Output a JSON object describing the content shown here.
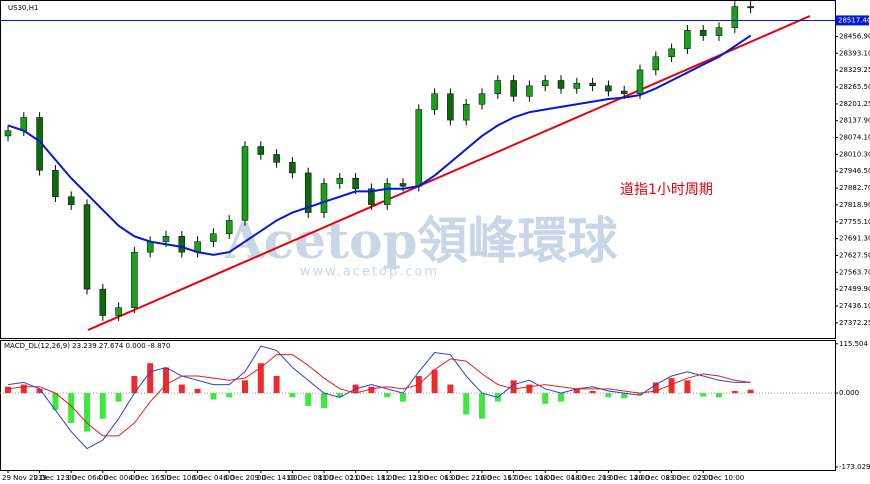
{
  "chart_data": [
    {
      "type": "candlestick",
      "title": "US30,H1",
      "annotation": "道指1小时周期",
      "annotation_color": "#e8000b",
      "categories": [
        "29 Nov 2019",
        null,
        "2 Dec 12:00",
        null,
        "3 Dec 06:00",
        null,
        "4 Dec 00:00",
        null,
        "4 Dec 16:00",
        null,
        "5 Dec 10:00",
        null,
        "6 Dec 04:00",
        null,
        "6 Dec 20:00",
        null,
        "9 Dec 14:00",
        null,
        "10 Dec 08:00",
        null,
        "11 Dec 02:00",
        null,
        "11 Dec 18:00",
        null,
        "12 Dec 12:00",
        null,
        "13 Dec 06:00",
        null,
        "13 Dec 22:00",
        null,
        "16 Dec 16:00",
        null,
        "17 Dec 10:00",
        null,
        "18 Dec 04:00",
        null,
        "18 Dec 20:00",
        null,
        "19 Dec 14:00",
        null,
        "20 Dec 08:00",
        null,
        "23 Dec 02:00",
        null,
        "23 Dec 10:00",
        null,
        null,
        null
      ],
      "open": [
        28080,
        28100,
        28150,
        27950,
        27850,
        27820,
        27500,
        27400,
        27430,
        27640,
        27680,
        27700,
        27640,
        27680,
        27710,
        27760,
        28040,
        28010,
        27980,
        27940,
        27790,
        27900,
        27920,
        27880,
        27820,
        27900,
        27890,
        28180,
        28240,
        28140,
        28200,
        28240,
        28290,
        28230,
        28270,
        28290,
        28260,
        28280,
        28270,
        28250,
        28240,
        28330,
        28380,
        28410,
        28480,
        28460,
        28490,
        28570
      ],
      "high": [
        28120,
        28170,
        28170,
        27970,
        27870,
        27840,
        27520,
        27450,
        27660,
        27700,
        27720,
        27720,
        27700,
        27730,
        27780,
        28060,
        28060,
        28030,
        28000,
        27960,
        27920,
        27940,
        27940,
        27900,
        27920,
        27920,
        28200,
        28260,
        28260,
        28220,
        28260,
        28310,
        28310,
        28290,
        28310,
        28310,
        28300,
        28300,
        28290,
        28270,
        28350,
        28400,
        28430,
        28500,
        28500,
        28510,
        28590,
        28590
      ],
      "low": [
        28060,
        28080,
        27930,
        27830,
        27800,
        27480,
        27380,
        27380,
        27410,
        27620,
        27660,
        27620,
        27620,
        27660,
        27690,
        27740,
        27990,
        27960,
        27920,
        27770,
        27770,
        27880,
        27860,
        27800,
        27800,
        27870,
        27870,
        28160,
        28120,
        28120,
        28180,
        28220,
        28210,
        28210,
        28250,
        28240,
        28240,
        28250,
        28230,
        28220,
        28220,
        28310,
        28360,
        28390,
        28440,
        28440,
        28470,
        28545
      ],
      "close": [
        28100,
        28150,
        27950,
        27850,
        27820,
        27500,
        27400,
        27430,
        27640,
        27680,
        27700,
        27640,
        27680,
        27710,
        27760,
        28040,
        28010,
        27980,
        27940,
        27790,
        27900,
        27920,
        27880,
        27820,
        27900,
        27890,
        28180,
        28240,
        28140,
        28200,
        28240,
        28290,
        28230,
        28270,
        28290,
        28260,
        28280,
        28270,
        28250,
        28240,
        28330,
        28380,
        28410,
        28480,
        28460,
        28490,
        28570,
        28565
      ],
      "up_color": "#19a019",
      "down_color": "#0b6b0b",
      "overlays": [
        {
          "color": "#0018d8",
          "values": [
            28120,
            28100,
            28060,
            27990,
            27920,
            27860,
            27800,
            27740,
            27700,
            27680,
            27670,
            27660,
            27640,
            27630,
            27640,
            27680,
            27720,
            27760,
            27790,
            27810,
            27830,
            27850,
            27870,
            27870,
            27880,
            27880,
            27890,
            27930,
            27980,
            28030,
            28080,
            28120,
            28150,
            28170,
            28180,
            28190,
            28200,
            28210,
            28220,
            28225,
            28235,
            28260,
            28290,
            28320,
            28350,
            28380,
            28420,
            28460
          ]
        }
      ],
      "level_line": {
        "value": 28517.4,
        "label": "28517.40",
        "color": "#0018d8"
      },
      "ylim": [
        27315,
        28591
      ],
      "yticks": [
        {
          "value": 28456.9,
          "label": "28456.90"
        },
        {
          "value": 28393.1,
          "label": "28393.10"
        },
        28329.25,
        {
          "value": 28265.5,
          "label": "28265.50"
        },
        28201.25,
        {
          "value": 28137.9,
          "label": "28137.90"
        },
        {
          "value": 28074.1,
          "label": "28074.10"
        },
        {
          "value": 28010.3,
          "label": "28010.30"
        },
        {
          "value": 27946.5,
          "label": "27946.50"
        },
        {
          "value": 27882.7,
          "label": "27882.70"
        },
        {
          "value": 27818.9,
          "label": "27818.90"
        },
        {
          "value": 27755.1,
          "label": "27755.10"
        },
        {
          "value": 27691.3,
          "label": "27691.30"
        },
        {
          "value": 27627.5,
          "label": "27627.50"
        },
        {
          "value": 27563.7,
          "label": "27563.70"
        },
        {
          "value": 27499.9,
          "label": "27499.90"
        },
        {
          "value": 27436.1,
          "label": "27436.10"
        },
        27372.25
      ]
    },
    {
      "type": "macd",
      "title": "MACD_DL(12,26,9) 23.239 27.674 0.000 -8.870",
      "values": [
        15,
        20,
        10,
        -40,
        -70,
        -90,
        -60,
        -20,
        40,
        70,
        60,
        20,
        10,
        -15,
        -10,
        30,
        70,
        40,
        -10,
        -30,
        -35,
        -10,
        20,
        15,
        -10,
        -20,
        40,
        55,
        20,
        -50,
        -60,
        -20,
        30,
        20,
        -25,
        -20,
        10,
        5,
        -10,
        -12,
        -5,
        25,
        35,
        30,
        -8,
        -10,
        5,
        8
      ],
      "positive_color": "#ee2a2a",
      "negative_color": "#3ee83e",
      "lines": [
        {
          "color": "#3040d0",
          "values": [
            20,
            25,
            10,
            -40,
            -90,
            -130,
            -110,
            -60,
            0,
            50,
            60,
            40,
            30,
            20,
            20,
            50,
            110,
            100,
            60,
            30,
            0,
            -10,
            10,
            20,
            10,
            0,
            50,
            95,
            90,
            40,
            0,
            -10,
            20,
            30,
            10,
            0,
            10,
            15,
            5,
            0,
            -5,
            20,
            40,
            50,
            40,
            30,
            25,
            25
          ]
        },
        {
          "color": "#e02020",
          "values": [
            10,
            15,
            15,
            0,
            -30,
            -70,
            -100,
            -100,
            -70,
            -20,
            20,
            40,
            40,
            35,
            30,
            35,
            60,
            90,
            90,
            65,
            35,
            10,
            0,
            10,
            15,
            10,
            20,
            55,
            80,
            75,
            45,
            20,
            10,
            15,
            20,
            15,
            10,
            10,
            10,
            5,
            0,
            5,
            20,
            35,
            45,
            40,
            30,
            25
          ]
        }
      ],
      "ylim": [
        -180,
        122
      ],
      "yticks": [
        115.504,
        {
          "value": 0,
          "label": "0.000"
        },
        -173.029
      ]
    }
  ],
  "watermark": {
    "brand": "Acetop領峰環球",
    "url": "www.acetop.com"
  }
}
